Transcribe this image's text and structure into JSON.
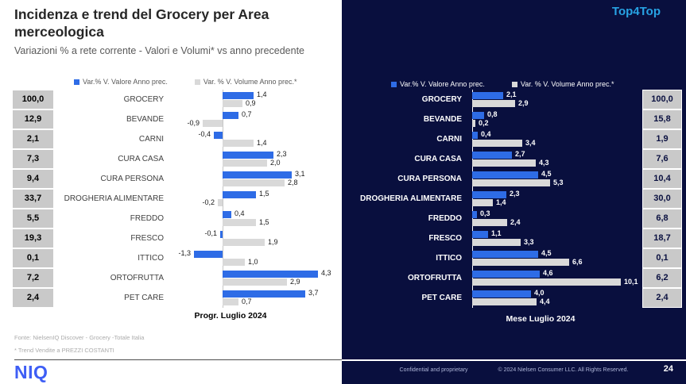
{
  "left_panel": {
    "title": "Incidenza e trend del Grocery per Area merceologica",
    "subtitle": "Variazioni % a rete corrente - Valori e Volumi* vs anno precedente",
    "footnotes": {
      "source": "Fonte: NielsenIQ Discover  - Grocery -Totale Italia",
      "note": "* Trend Vendite a PREZZI COSTANTI"
    },
    "logo": "NIQ"
  },
  "right_panel": {
    "badge": "Top4Top",
    "footer": {
      "confidential": "Confidential and proprietary",
      "copyright": "© 2024 Nielsen Consumer LLC. All Rights Reserved.",
      "page_number": "24"
    }
  },
  "legend": {
    "value_label": "Var.% V. Valore Anno prec.",
    "volume_label": "Var. % V. Volume Anno prec.*"
  },
  "colors": {
    "value_bar_blue": "#2E6CE6",
    "volume_bar_gray": "#D9D9D9",
    "right_panel_navy": "#090F3E",
    "badge_blue": "#27A2E3",
    "niq_logo_blue": "#3E5EF5",
    "incidence_box_gray": "#C9C9C9"
  },
  "chart_data": [
    {
      "type": "bar",
      "orientation": "horizontal",
      "title": "Progr. Luglio 2024",
      "legend_position": "top",
      "grid": false,
      "xlim": [
        -1.5,
        5
      ],
      "categories": [
        "GROCERY",
        "BEVANDE",
        "CARNI",
        "CURA CASA",
        "CURA PERSONA",
        "DROGHERIA ALIMENTARE",
        "FREDDO",
        "FRESCO",
        "ITTICO",
        "ORTOFRUTTA",
        "PET CARE"
      ],
      "incidence": [
        100.0,
        12.9,
        2.1,
        7.3,
        9.4,
        33.7,
        5.5,
        19.3,
        0.1,
        7.2,
        2.4
      ],
      "series": [
        {
          "name": "Var.% V. Valore Anno prec.",
          "values": [
            1.4,
            0.7,
            -0.4,
            2.3,
            3.1,
            1.5,
            0.4,
            -0.1,
            -1.3,
            4.3,
            3.7
          ]
        },
        {
          "name": "Var. % V. Volume Anno prec.*",
          "values": [
            0.9,
            -0.9,
            1.4,
            2.0,
            2.8,
            -0.2,
            1.5,
            1.9,
            1.0,
            2.9,
            0.7
          ]
        }
      ]
    },
    {
      "type": "bar",
      "orientation": "horizontal",
      "title": "Mese Luglio 2024",
      "legend_position": "top",
      "grid": false,
      "xlim": [
        0,
        11
      ],
      "categories": [
        "GROCERY",
        "BEVANDE",
        "CARNI",
        "CURA CASA",
        "CURA PERSONA",
        "DROGHERIA ALIMENTARE",
        "FREDDO",
        "FRESCO",
        "ITTICO",
        "ORTOFRUTTA",
        "PET CARE"
      ],
      "incidence": [
        100.0,
        15.8,
        1.9,
        7.6,
        10.4,
        30.0,
        6.8,
        18.7,
        0.1,
        6.2,
        2.4
      ],
      "series": [
        {
          "name": "Var.% V. Valore Anno prec.",
          "values": [
            2.1,
            0.8,
            0.4,
            2.7,
            4.5,
            2.3,
            0.3,
            1.1,
            4.5,
            4.6,
            4.0
          ]
        },
        {
          "name": "Var. % V. Volume Anno prec.*",
          "values": [
            2.9,
            0.2,
            3.4,
            4.3,
            5.3,
            1.4,
            2.4,
            3.3,
            6.6,
            10.1,
            4.4
          ]
        }
      ]
    }
  ]
}
